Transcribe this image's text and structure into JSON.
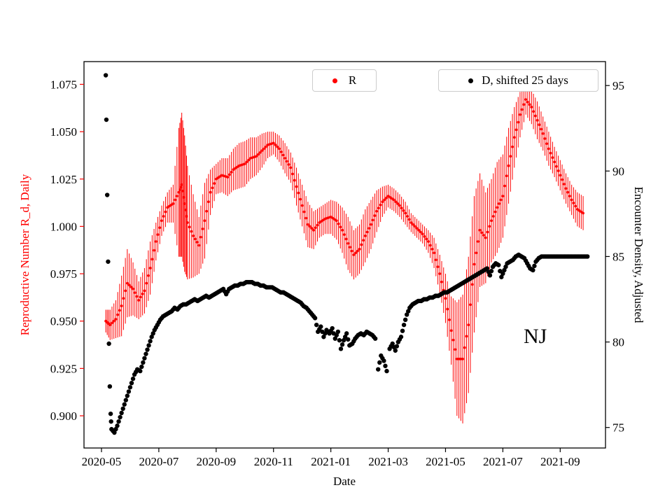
{
  "figure": {
    "background": "#ffffff"
  },
  "chart_data": {
    "type": "scatter",
    "title": "",
    "xlabel": "Date",
    "ylabel_left": "Reproductive Number R_d, Daily",
    "ylabel_right": "Encounter Density, Adjusted",
    "annotation": "NJ",
    "x_unit": "months since 2020-05-01",
    "xlim": [
      -0.61,
      17.58
    ],
    "ylim_left": [
      0.883,
      1.087
    ],
    "ylim_right": [
      73.8,
      96.4
    ],
    "grid": false,
    "legend_position": "upper center, two boxes",
    "xtick_positions": [
      0,
      2,
      4,
      6,
      8,
      10,
      12,
      14,
      16
    ],
    "xtick_labels": [
      "2020-05",
      "2020-07",
      "2020-09",
      "2020-11",
      "2021-01",
      "2021-03",
      "2021-05",
      "2021-07",
      "2021-09"
    ],
    "ytick_left_values": [
      0.9,
      0.925,
      0.95,
      0.975,
      1.0,
      1.025,
      1.05,
      1.075
    ],
    "ytick_left_labels": [
      "0.900",
      "0.925",
      "0.950",
      "0.975",
      "1.000",
      "1.025",
      "1.050",
      "1.075"
    ],
    "ytick_right_values": [
      75,
      80,
      85,
      90,
      95
    ],
    "ytick_right_labels": [
      "75",
      "80",
      "85",
      "90",
      "95"
    ],
    "left_axis_color": "#ff0000",
    "right_axis_color": "#000000",
    "legend": [
      {
        "label": "R",
        "color": "#ff0000"
      },
      {
        "label": "D, shifted 25 days",
        "color": "#000000"
      }
    ],
    "series": [
      {
        "name": "R",
        "axis": "left",
        "color": "#ff0000",
        "marker": "dot",
        "errorbars": true,
        "points": [
          [
            0.15,
            0.95,
            0.006
          ],
          [
            0.3,
            0.948,
            0.008
          ],
          [
            0.5,
            0.951,
            0.01
          ],
          [
            0.7,
            0.958,
            0.016
          ],
          [
            0.9,
            0.97,
            0.018
          ],
          [
            1.1,
            0.967,
            0.014
          ],
          [
            1.3,
            0.961,
            0.01
          ],
          [
            1.5,
            0.966,
            0.012
          ],
          [
            1.7,
            0.978,
            0.014
          ],
          [
            1.9,
            0.992,
            0.01
          ],
          [
            2.1,
            1.003,
            0.008
          ],
          [
            2.3,
            1.01,
            0.008
          ],
          [
            2.5,
            1.012,
            0.01
          ],
          [
            2.7,
            1.018,
            0.034
          ],
          [
            2.8,
            1.022,
            0.038
          ],
          [
            2.9,
            1.012,
            0.036
          ],
          [
            3.0,
            1.002,
            0.03
          ],
          [
            3.2,
            0.995,
            0.022
          ],
          [
            3.4,
            0.99,
            0.015
          ],
          [
            3.6,
            1.003,
            0.02
          ],
          [
            3.8,
            1.018,
            0.012
          ],
          [
            4.0,
            1.025,
            0.008
          ],
          [
            4.2,
            1.027,
            0.009
          ],
          [
            4.4,
            1.026,
            0.01
          ],
          [
            4.6,
            1.03,
            0.011
          ],
          [
            4.8,
            1.032,
            0.012
          ],
          [
            5.0,
            1.033,
            0.012
          ],
          [
            5.2,
            1.036,
            0.011
          ],
          [
            5.4,
            1.037,
            0.01
          ],
          [
            5.6,
            1.04,
            0.009
          ],
          [
            5.8,
            1.043,
            0.007
          ],
          [
            6.0,
            1.044,
            0.006
          ],
          [
            6.2,
            1.041,
            0.007
          ],
          [
            6.4,
            1.036,
            0.008
          ],
          [
            6.6,
            1.031,
            0.008
          ],
          [
            6.8,
            1.021,
            0.01
          ],
          [
            7.0,
            1.011,
            0.011
          ],
          [
            7.2,
            1.001,
            0.012
          ],
          [
            7.4,
            0.998,
            0.01
          ],
          [
            7.6,
            1.002,
            0.008
          ],
          [
            7.8,
            1.004,
            0.008
          ],
          [
            8.0,
            1.005,
            0.009
          ],
          [
            8.2,
            1.003,
            0.01
          ],
          [
            8.4,
            0.998,
            0.012
          ],
          [
            8.6,
            0.991,
            0.014
          ],
          [
            8.8,
            0.985,
            0.013
          ],
          [
            9.0,
            0.988,
            0.013
          ],
          [
            9.2,
            0.995,
            0.014
          ],
          [
            9.4,
            1.001,
            0.013
          ],
          [
            9.6,
            1.008,
            0.011
          ],
          [
            9.8,
            1.013,
            0.008
          ],
          [
            10.0,
            1.016,
            0.006
          ],
          [
            10.2,
            1.014,
            0.006
          ],
          [
            10.4,
            1.011,
            0.006
          ],
          [
            10.6,
            1.007,
            0.006
          ],
          [
            10.8,
            1.002,
            0.005
          ],
          [
            11.0,
            0.999,
            0.005
          ],
          [
            11.2,
            0.996,
            0.005
          ],
          [
            11.4,
            0.992,
            0.006
          ],
          [
            11.6,
            0.986,
            0.008
          ],
          [
            11.8,
            0.975,
            0.01
          ],
          [
            12.0,
            0.962,
            0.013
          ],
          [
            12.2,
            0.945,
            0.018
          ],
          [
            12.4,
            0.93,
            0.03
          ],
          [
            12.6,
            0.93,
            0.034
          ],
          [
            12.8,
            0.948,
            0.036
          ],
          [
            13.0,
            0.98,
            0.036
          ],
          [
            13.2,
            0.998,
            0.03
          ],
          [
            13.4,
            0.994,
            0.024
          ],
          [
            13.6,
            1.003,
            0.022
          ],
          [
            13.8,
            1.01,
            0.024
          ],
          [
            14.0,
            1.016,
            0.022
          ],
          [
            14.2,
            1.032,
            0.02
          ],
          [
            14.4,
            1.047,
            0.016
          ],
          [
            14.6,
            1.059,
            0.012
          ],
          [
            14.8,
            1.067,
            0.008
          ],
          [
            15.0,
            1.063,
            0.009
          ],
          [
            15.2,
            1.056,
            0.01
          ],
          [
            15.4,
            1.049,
            0.009
          ],
          [
            15.6,
            1.041,
            0.009
          ],
          [
            15.8,
            1.034,
            0.008
          ],
          [
            16.0,
            1.027,
            0.008
          ],
          [
            16.2,
            1.02,
            0.008
          ],
          [
            16.4,
            1.014,
            0.008
          ],
          [
            16.6,
            1.009,
            0.009
          ],
          [
            16.8,
            1.007,
            0.009
          ]
        ]
      },
      {
        "name": "D, shifted 25 days",
        "axis": "right",
        "color": "#000000",
        "marker": "dot",
        "errorbars": false,
        "points": [
          [
            0.15,
            95.6
          ],
          [
            0.17,
            93.0
          ],
          [
            0.2,
            88.6
          ],
          [
            0.23,
            84.7
          ],
          [
            0.26,
            79.9
          ],
          [
            0.29,
            77.4
          ],
          [
            0.32,
            75.8
          ],
          [
            0.35,
            74.9
          ],
          [
            0.45,
            74.7
          ],
          [
            0.55,
            75.1
          ],
          [
            0.65,
            75.6
          ],
          [
            0.75,
            76.1
          ],
          [
            0.85,
            76.6
          ],
          [
            0.95,
            77.1
          ],
          [
            1.05,
            77.6
          ],
          [
            1.15,
            78.1
          ],
          [
            1.25,
            78.4
          ],
          [
            1.35,
            78.3
          ],
          [
            1.45,
            78.8
          ],
          [
            1.55,
            79.3
          ],
          [
            1.65,
            79.8
          ],
          [
            1.75,
            80.3
          ],
          [
            1.85,
            80.7
          ],
          [
            1.95,
            81.0
          ],
          [
            2.05,
            81.3
          ],
          [
            2.15,
            81.5
          ],
          [
            2.25,
            81.6
          ],
          [
            2.35,
            81.7
          ],
          [
            2.45,
            81.8
          ],
          [
            2.55,
            82.0
          ],
          [
            2.65,
            81.9
          ],
          [
            2.75,
            82.1
          ],
          [
            2.85,
            82.2
          ],
          [
            2.95,
            82.2
          ],
          [
            3.05,
            82.3
          ],
          [
            3.15,
            82.4
          ],
          [
            3.25,
            82.5
          ],
          [
            3.35,
            82.4
          ],
          [
            3.45,
            82.5
          ],
          [
            3.55,
            82.6
          ],
          [
            3.65,
            82.7
          ],
          [
            3.75,
            82.6
          ],
          [
            3.85,
            82.7
          ],
          [
            3.95,
            82.8
          ],
          [
            4.05,
            82.9
          ],
          [
            4.15,
            83.0
          ],
          [
            4.25,
            83.1
          ],
          [
            4.35,
            82.8
          ],
          [
            4.45,
            83.1
          ],
          [
            4.55,
            83.2
          ],
          [
            4.65,
            83.3
          ],
          [
            4.75,
            83.3
          ],
          [
            4.85,
            83.4
          ],
          [
            4.95,
            83.4
          ],
          [
            5.05,
            83.5
          ],
          [
            5.15,
            83.5
          ],
          [
            5.25,
            83.5
          ],
          [
            5.35,
            83.4
          ],
          [
            5.45,
            83.4
          ],
          [
            5.55,
            83.3
          ],
          [
            5.65,
            83.3
          ],
          [
            5.75,
            83.2
          ],
          [
            5.85,
            83.2
          ],
          [
            5.95,
            83.2
          ],
          [
            6.05,
            83.1
          ],
          [
            6.15,
            83.0
          ],
          [
            6.25,
            82.9
          ],
          [
            6.35,
            82.9
          ],
          [
            6.45,
            82.8
          ],
          [
            6.55,
            82.7
          ],
          [
            6.65,
            82.6
          ],
          [
            6.75,
            82.5
          ],
          [
            6.85,
            82.4
          ],
          [
            6.95,
            82.3
          ],
          [
            7.05,
            82.1
          ],
          [
            7.15,
            82.0
          ],
          [
            7.25,
            81.8
          ],
          [
            7.35,
            81.6
          ],
          [
            7.45,
            81.4
          ],
          [
            7.55,
            80.6
          ],
          [
            7.65,
            80.9
          ],
          [
            7.75,
            80.3
          ],
          [
            7.85,
            80.7
          ],
          [
            7.95,
            80.5
          ],
          [
            8.05,
            80.8
          ],
          [
            8.15,
            80.2
          ],
          [
            8.25,
            80.6
          ],
          [
            8.35,
            79.6
          ],
          [
            8.45,
            80.1
          ],
          [
            8.55,
            80.5
          ],
          [
            8.65,
            79.8
          ],
          [
            8.75,
            79.9
          ],
          [
            8.85,
            80.2
          ],
          [
            8.95,
            80.4
          ],
          [
            9.05,
            80.5
          ],
          [
            9.15,
            80.4
          ],
          [
            9.25,
            80.6
          ],
          [
            9.35,
            80.5
          ],
          [
            9.45,
            80.4
          ],
          [
            9.55,
            80.2
          ],
          [
            9.65,
            78.4
          ],
          [
            9.75,
            79.2
          ],
          [
            9.85,
            78.9
          ],
          [
            9.95,
            78.3
          ],
          [
            10.05,
            79.6
          ],
          [
            10.15,
            79.9
          ],
          [
            10.25,
            79.5
          ],
          [
            10.35,
            80.0
          ],
          [
            10.45,
            80.3
          ],
          [
            10.55,
            81.0
          ],
          [
            10.65,
            81.6
          ],
          [
            10.75,
            82.0
          ],
          [
            10.85,
            82.2
          ],
          [
            10.95,
            82.3
          ],
          [
            11.05,
            82.4
          ],
          [
            11.15,
            82.4
          ],
          [
            11.25,
            82.5
          ],
          [
            11.35,
            82.5
          ],
          [
            11.45,
            82.6
          ],
          [
            11.55,
            82.6
          ],
          [
            11.65,
            82.7
          ],
          [
            11.75,
            82.7
          ],
          [
            11.85,
            82.8
          ],
          [
            11.95,
            82.9
          ],
          [
            12.05,
            82.9
          ],
          [
            12.15,
            83.0
          ],
          [
            12.25,
            83.1
          ],
          [
            12.35,
            83.2
          ],
          [
            12.45,
            83.3
          ],
          [
            12.55,
            83.4
          ],
          [
            12.65,
            83.5
          ],
          [
            12.75,
            83.6
          ],
          [
            12.85,
            83.7
          ],
          [
            12.95,
            83.8
          ],
          [
            13.05,
            83.9
          ],
          [
            13.15,
            84.0
          ],
          [
            13.25,
            84.1
          ],
          [
            13.35,
            84.2
          ],
          [
            13.45,
            84.3
          ],
          [
            13.55,
            83.9
          ],
          [
            13.65,
            84.4
          ],
          [
            13.75,
            84.6
          ],
          [
            13.85,
            84.5
          ],
          [
            13.95,
            83.8
          ],
          [
            14.05,
            84.2
          ],
          [
            14.15,
            84.6
          ],
          [
            14.25,
            84.7
          ],
          [
            14.35,
            84.8
          ],
          [
            14.45,
            85.0
          ],
          [
            14.55,
            85.1
          ],
          [
            14.65,
            85.0
          ],
          [
            14.75,
            84.9
          ],
          [
            14.85,
            84.6
          ],
          [
            14.95,
            84.3
          ],
          [
            15.05,
            84.2
          ],
          [
            15.15,
            84.7
          ],
          [
            15.25,
            84.9
          ],
          [
            15.35,
            85.0
          ],
          [
            15.45,
            85.0
          ],
          [
            15.55,
            85.0
          ],
          [
            15.65,
            85.0
          ],
          [
            15.75,
            85.0
          ],
          [
            15.85,
            85.0
          ],
          [
            15.95,
            85.0
          ],
          [
            16.05,
            85.0
          ],
          [
            16.15,
            85.0
          ],
          [
            16.25,
            85.0
          ],
          [
            16.35,
            85.0
          ],
          [
            16.45,
            85.0
          ],
          [
            16.55,
            85.0
          ],
          [
            16.65,
            85.0
          ],
          [
            16.75,
            85.0
          ],
          [
            16.85,
            85.0
          ],
          [
            16.95,
            85.0
          ]
        ]
      }
    ]
  }
}
